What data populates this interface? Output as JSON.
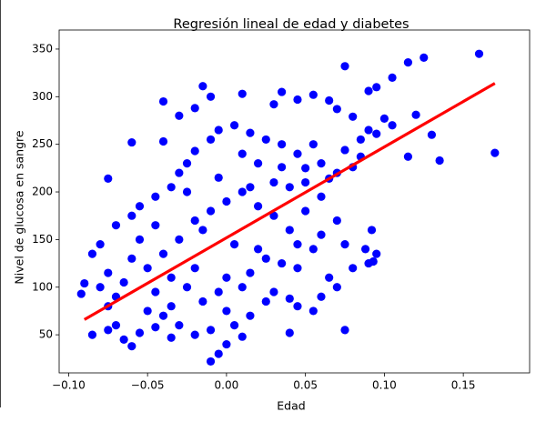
{
  "chart_data": {
    "type": "scatter",
    "title": "Regresión lineal de edad y diabetes",
    "xlabel": "Edad",
    "ylabel": "Nivel de glucosa en sangre",
    "xlim": [
      -0.106,
      0.192
    ],
    "ylim": [
      10,
      370
    ],
    "xticks": [
      {
        "value": -0.1,
        "label": "−0.10"
      },
      {
        "value": -0.05,
        "label": "−0.05"
      },
      {
        "value": 0,
        "label": "0.00"
      },
      {
        "value": 0.05,
        "label": "0.05"
      },
      {
        "value": 0.1,
        "label": "0.10"
      },
      {
        "value": 0.15,
        "label": "0.15"
      }
    ],
    "yticks": [
      50,
      100,
      150,
      200,
      250,
      300,
      350
    ],
    "grid": false,
    "series": [
      {
        "type": "scatter",
        "color": "#0000ff",
        "x": [
          0.16,
          0.125,
          0.115,
          0.075,
          0.105,
          0.17,
          0.135,
          0.115,
          0.12,
          0.13,
          0.095,
          0.09,
          0.055,
          0.045,
          0.035,
          0.03,
          0.01,
          -0.04,
          -0.015,
          -0.01,
          -0.02,
          -0.03,
          0.065,
          0.07,
          0.08,
          0.1,
          0.105,
          0.09,
          0.095,
          0.085,
          0.075,
          0.085,
          0.07,
          0.08,
          0.06,
          0.065,
          0.05,
          0.04,
          0.03,
          0.035,
          0.045,
          0.055,
          0.025,
          0.015,
          0.005,
          -0.005,
          -0.01,
          -0.02,
          -0.025,
          -0.03,
          -0.035,
          -0.045,
          -0.055,
          -0.06,
          -0.07,
          -0.08,
          -0.085,
          -0.075,
          -0.09,
          -0.092,
          -0.085,
          -0.075,
          -0.07,
          -0.065,
          -0.06,
          -0.055,
          -0.045,
          -0.04,
          -0.035,
          -0.03,
          -0.02,
          -0.01,
          -0.005,
          -0.01,
          0,
          0.005,
          0.01,
          0.015,
          0.025,
          0.03,
          0.04,
          0.045,
          0.055,
          0.06,
          0.065,
          0.07,
          0.075,
          0.08,
          0.09,
          0.095,
          0.093,
          0.075,
          0.06,
          0.055,
          0.045,
          0.035,
          0.025,
          0.015,
          0.01,
          0,
          -0.005,
          -0.015,
          -0.025,
          -0.035,
          -0.045,
          -0.05,
          -0.06,
          -0.065,
          -0.07,
          -0.075,
          -0.08,
          -0.055,
          -0.045,
          -0.04,
          -0.03,
          -0.02,
          -0.01,
          0,
          0.01,
          0.02,
          0.03,
          0.04,
          0.05,
          0.06,
          0.07,
          0.045,
          -0.06,
          -0.075,
          -0.04,
          -0.025,
          -0.015,
          0.005,
          0.02,
          0.035,
          0.05,
          0.088,
          0.092,
          -0.05,
          -0.035,
          -0.02,
          0,
          0.02,
          0.01,
          -0.005,
          0.015,
          0.04
        ],
        "values": [
          345,
          341,
          336,
          332,
          320,
          241,
          233,
          237,
          281,
          260,
          310,
          306,
          302,
          297,
          305,
          292,
          303,
          295,
          311,
          300,
          288,
          280,
          296,
          287,
          279,
          277,
          270,
          265,
          261,
          255,
          244,
          237,
          220,
          226,
          230,
          214,
          210,
          205,
          210,
          226,
          240,
          250,
          255,
          262,
          270,
          265,
          255,
          243,
          230,
          220,
          205,
          195,
          185,
          175,
          165,
          145,
          135,
          115,
          104,
          93,
          50,
          55,
          60,
          45,
          38,
          52,
          58,
          70,
          47,
          60,
          50,
          55,
          30,
          22,
          40,
          60,
          48,
          70,
          85,
          95,
          52,
          80,
          75,
          90,
          110,
          100,
          55,
          120,
          125,
          135,
          127,
          145,
          155,
          140,
          145,
          125,
          130,
          115,
          100,
          110,
          95,
          85,
          100,
          110,
          95,
          120,
          130,
          105,
          90,
          80,
          100,
          150,
          165,
          135,
          150,
          170,
          180,
          190,
          200,
          185,
          175,
          160,
          180,
          195,
          170,
          120,
          252,
          214,
          253,
          200,
          160,
          145,
          230,
          250,
          225,
          140,
          160,
          75,
          80,
          120,
          75,
          140,
          240,
          215,
          205,
          88
        ]
      },
      {
        "type": "line",
        "color": "#ff0000",
        "x": [
          -0.09,
          0.17
        ],
        "values": [
          66,
          314
        ]
      }
    ]
  }
}
